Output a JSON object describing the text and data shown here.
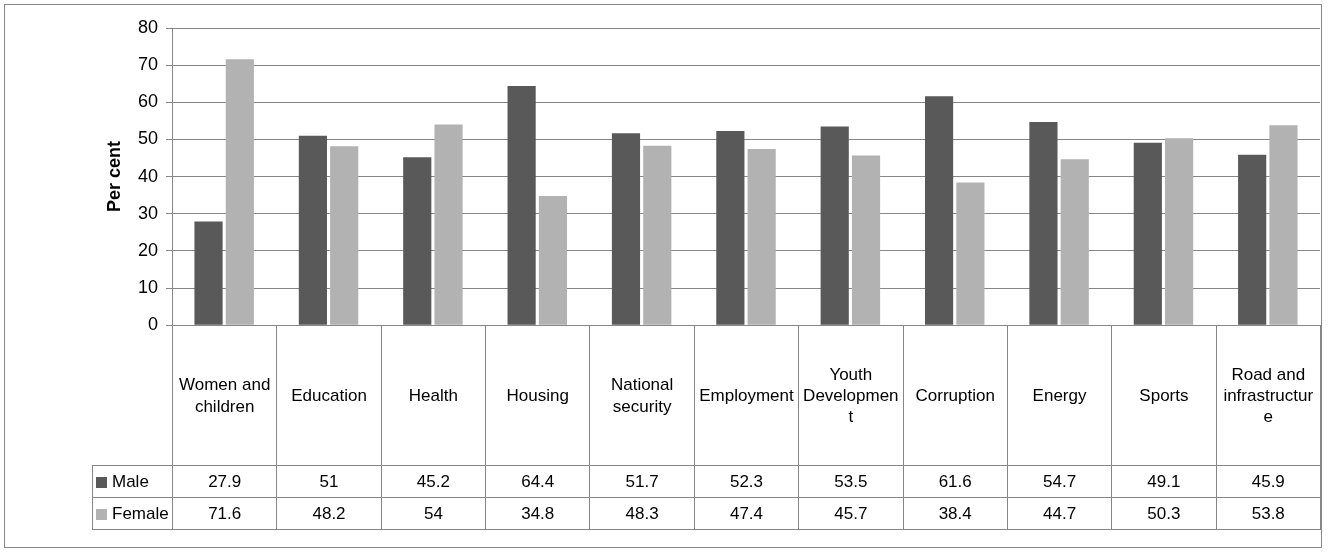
{
  "chart_data": {
    "type": "bar",
    "ylabel": "Per cent",
    "categories": [
      "Women and children",
      "Education",
      "Health",
      "Housing",
      "National security",
      "Employment",
      "Youth Development",
      "Corruption",
      "Energy",
      "Sports",
      "Road and infrastructure"
    ],
    "series": [
      {
        "name": "Male",
        "color": "#595959",
        "values": [
          27.9,
          51,
          45.2,
          64.4,
          51.7,
          52.3,
          53.5,
          61.6,
          54.7,
          49.1,
          45.9
        ]
      },
      {
        "name": "Female",
        "color": "#b2b2b2",
        "values": [
          71.6,
          48.2,
          54,
          34.8,
          48.3,
          47.4,
          45.7,
          38.4,
          44.7,
          50.3,
          53.8
        ]
      }
    ],
    "ylim": [
      0,
      80
    ],
    "yticks": [
      0,
      10,
      20,
      30,
      40,
      50,
      60,
      70,
      80
    ],
    "grid": "y",
    "legend": "bottom",
    "data_labels": true
  }
}
